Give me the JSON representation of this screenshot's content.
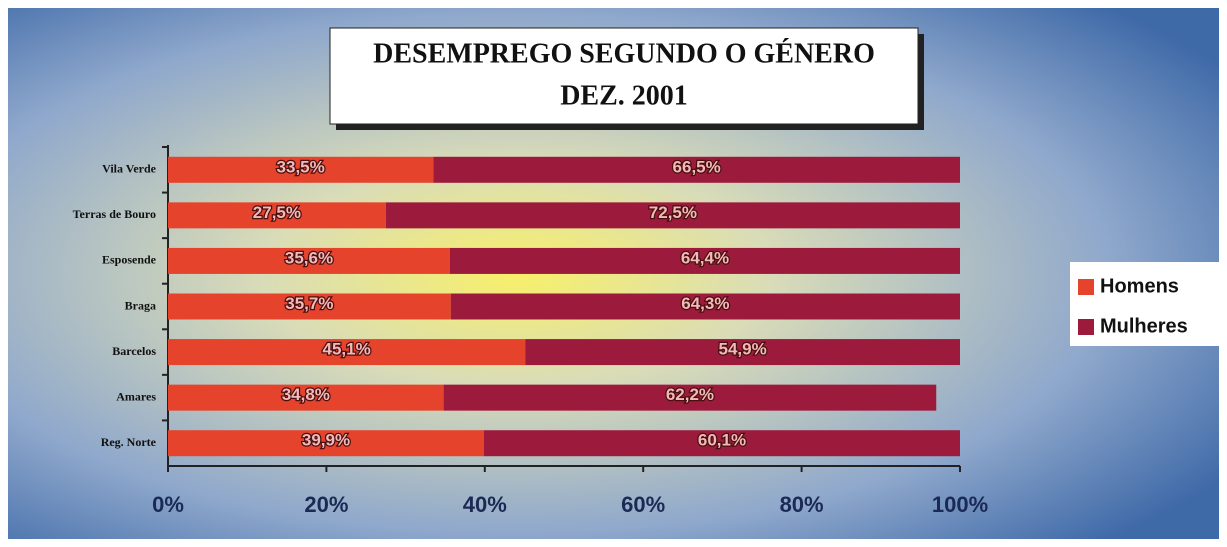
{
  "chart_data": {
    "type": "stacked-barh",
    "title": "DESEMPREGO SEGUNDO O GÉNERO",
    "subtitle": "DEZ. 2001",
    "categories": [
      "Vila Verde",
      "Terras de Bouro",
      "Esposende",
      "Braga",
      "Barcelos",
      "Amares",
      "Reg. Norte"
    ],
    "series": [
      {
        "name": "Homens",
        "color": "#e5432b",
        "values": [
          33.5,
          27.5,
          35.6,
          35.7,
          45.1,
          34.8,
          39.9
        ],
        "value_labels": [
          "33,5%",
          "27,5%",
          "35,6%",
          "35,7%",
          "45,1%",
          "34,8%",
          "39,9%"
        ]
      },
      {
        "name": "Mulheres",
        "color": "#9c1b3d",
        "values": [
          66.5,
          72.5,
          64.4,
          64.3,
          54.9,
          62.2,
          60.1
        ],
        "value_labels": [
          "66,5%",
          "72,5%",
          "64,4%",
          "64,3%",
          "54,9%",
          "62,2%",
          "60,1%"
        ]
      }
    ],
    "xlim": [
      0,
      100
    ],
    "xticks": [
      {
        "value": 0,
        "label": "0%"
      },
      {
        "value": 20,
        "label": "20%"
      },
      {
        "value": 40,
        "label": "40%"
      },
      {
        "value": 60,
        "label": "60%"
      },
      {
        "value": 80,
        "label": "80%"
      },
      {
        "value": 100,
        "label": "100%"
      }
    ],
    "legend": "right"
  }
}
